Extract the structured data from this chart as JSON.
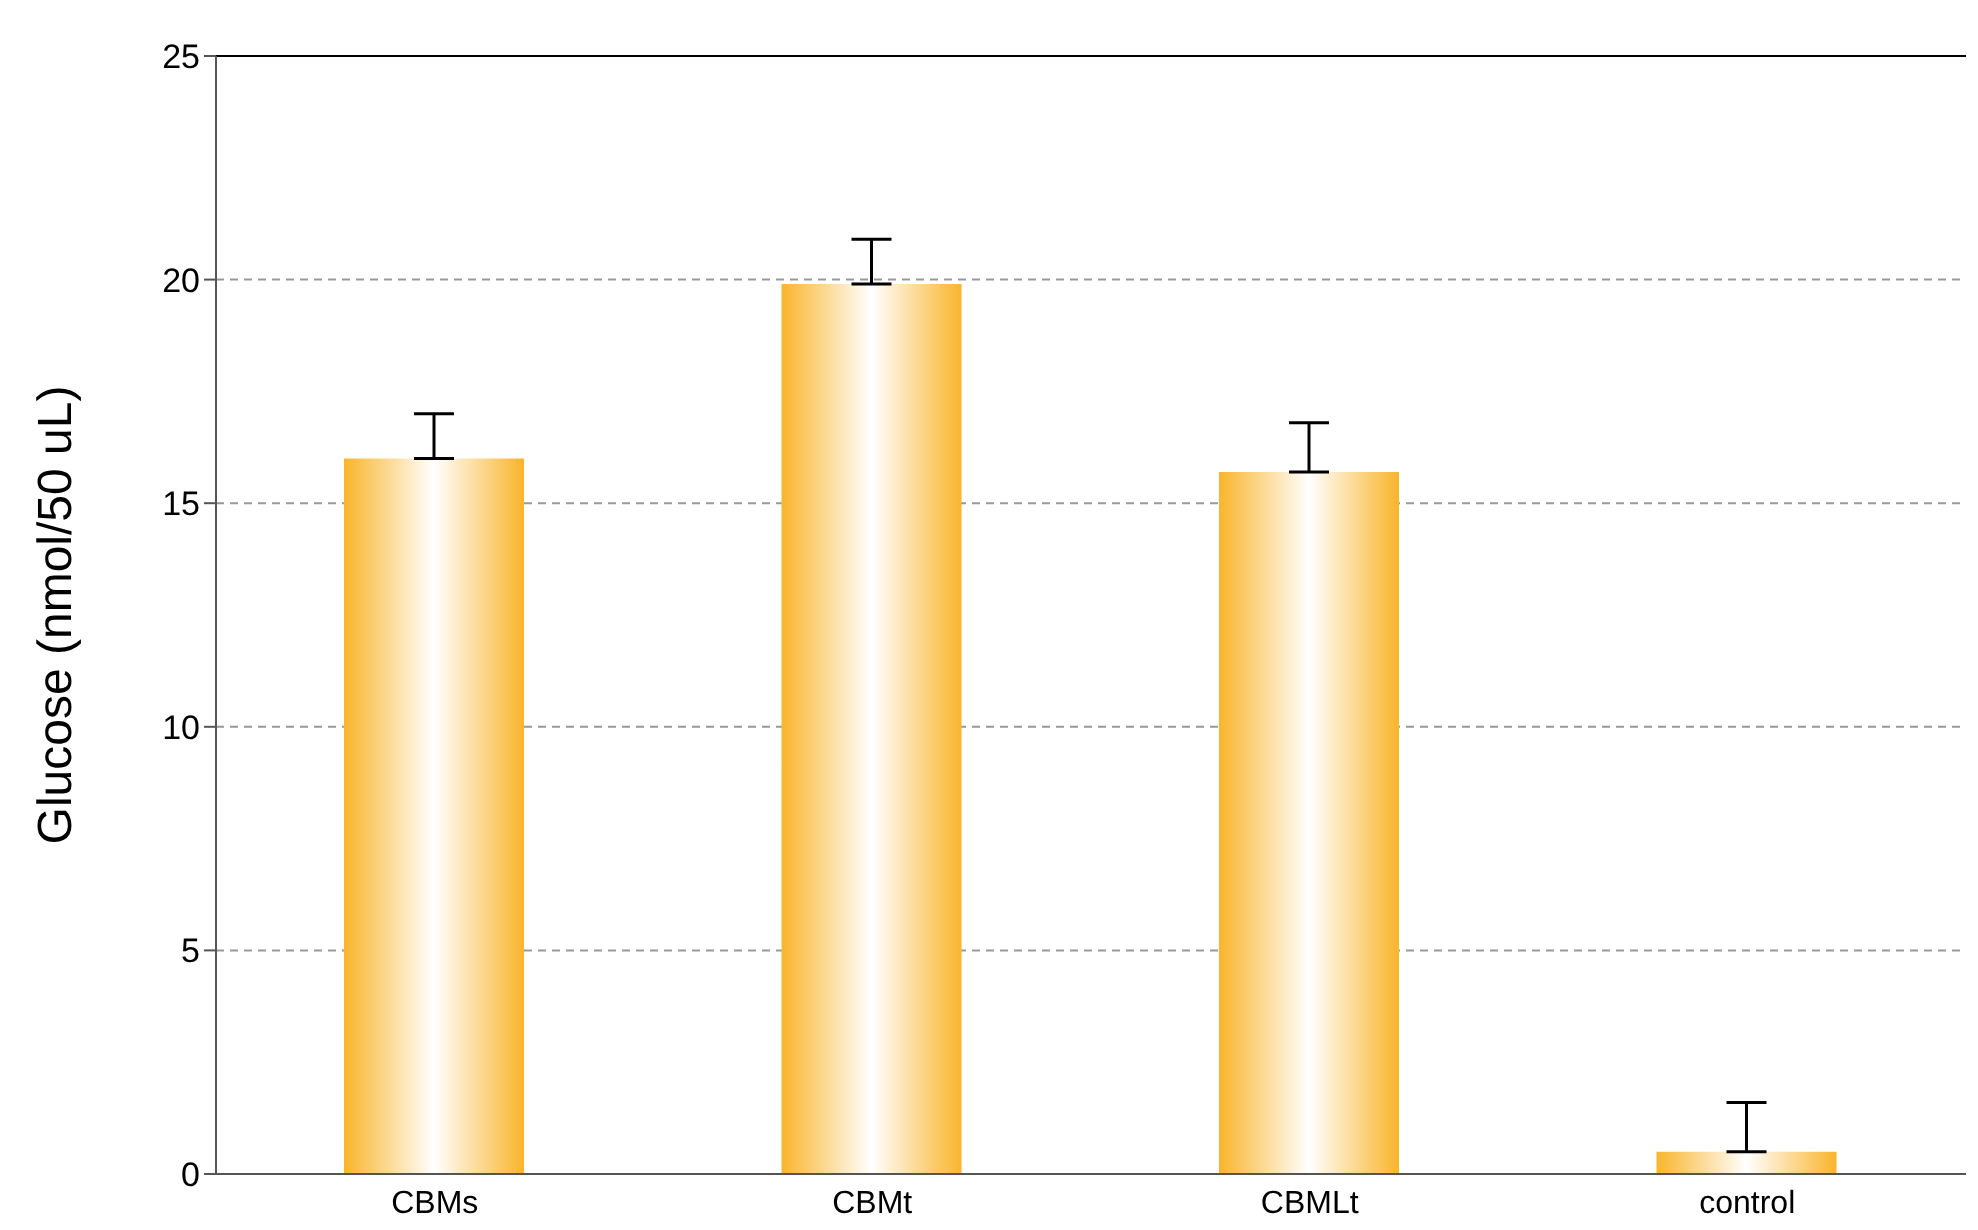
{
  "chart_data": {
    "type": "bar",
    "ylabel": "Glucose (nmol/50 uL)",
    "categories": [
      "CBMs",
      "CBMt",
      "CBMLt",
      "control"
    ],
    "values": [
      16.0,
      19.9,
      15.7,
      0.5
    ],
    "errors": [
      [
        16.0,
        17.0
      ],
      [
        19.9,
        20.9
      ],
      [
        15.7,
        16.8
      ],
      [
        0.5,
        1.6
      ]
    ],
    "color": "#f9b52b",
    "ylim": [
      0,
      25
    ],
    "yticks": [
      0,
      5,
      10,
      15,
      20,
      25
    ],
    "grid": "y",
    "legend": false
  }
}
